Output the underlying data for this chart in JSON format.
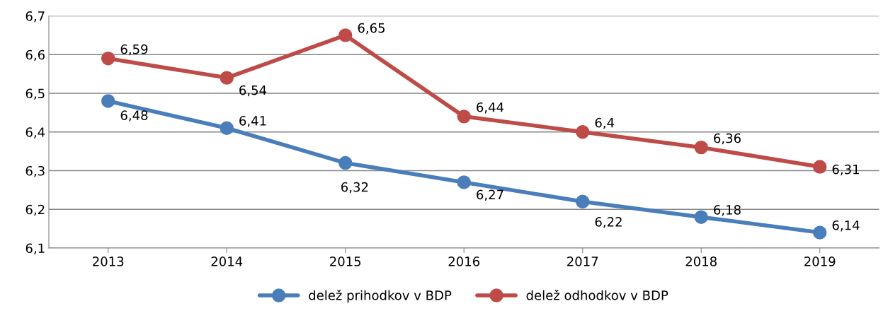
{
  "chart_data": {
    "type": "line",
    "categories": [
      "2013",
      "2014",
      "2015",
      "2016",
      "2017",
      "2018",
      "2019"
    ],
    "series": [
      {
        "name": "delež prihodkov v BDP",
        "color": "#4a7ebb",
        "values": [
          6.48,
          6.41,
          6.32,
          6.27,
          6.22,
          6.18,
          6.14
        ],
        "value_labels": [
          "6,48",
          "6,41",
          "6,32",
          "6,27",
          "6,22",
          "6,18",
          "6,14"
        ]
      },
      {
        "name": "delež odhodkov v BDP",
        "color": "#be4b48",
        "values": [
          6.59,
          6.54,
          6.65,
          6.44,
          6.4,
          6.36,
          6.31
        ],
        "value_labels": [
          "6,59",
          "6,54",
          "6,65",
          "6,44",
          "6,4",
          "6,36",
          "6,31"
        ]
      }
    ],
    "ylim": [
      6.1,
      6.7
    ],
    "yticks": [
      {
        "value": 6.1,
        "label": "6,1"
      },
      {
        "value": 6.2,
        "label": "6,2"
      },
      {
        "value": 6.3,
        "label": "6,3"
      },
      {
        "value": 6.4,
        "label": "6,4"
      },
      {
        "value": 6.5,
        "label": "6,5"
      },
      {
        "value": 6.6,
        "label": "6,6"
      },
      {
        "value": 6.7,
        "label": "6,7"
      }
    ],
    "grid": "y",
    "legend": "bottom",
    "marker": "circle",
    "line_style": "solid"
  }
}
